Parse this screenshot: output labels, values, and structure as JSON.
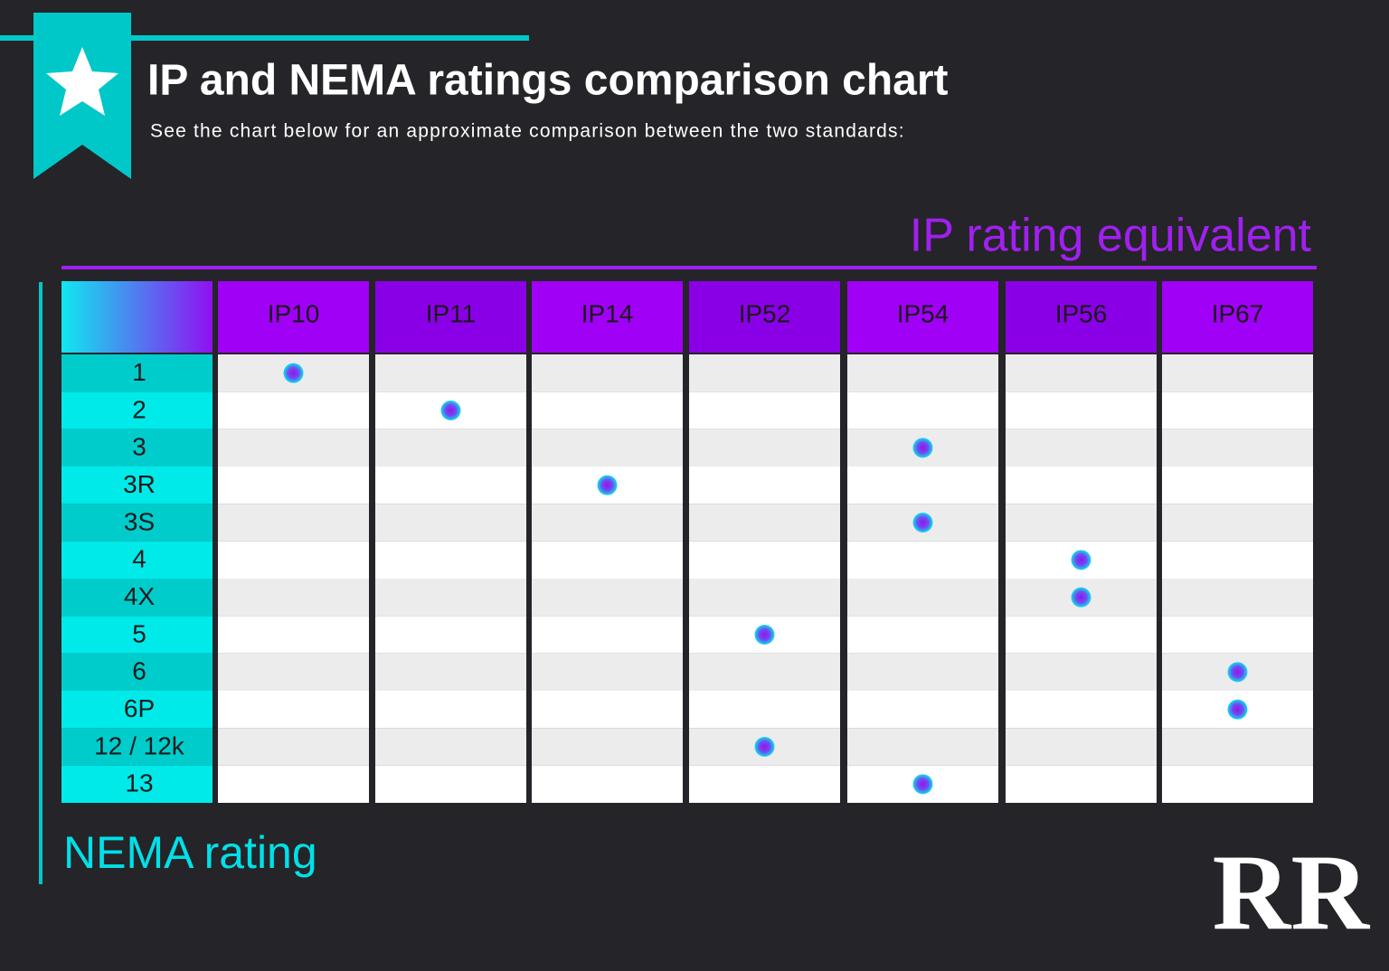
{
  "header": {
    "title": "IP and NEMA ratings comparison chart",
    "subtitle": "See the chart below for an approximate comparison between the two standards:"
  },
  "table": {
    "column_title": "IP rating equivalent",
    "row_title": "NEMA rating",
    "columns": [
      "IP10",
      "IP11",
      "IP14",
      "IP52",
      "IP54",
      "IP56",
      "IP67"
    ],
    "rows": [
      {
        "nema": "1",
        "ip": "IP10"
      },
      {
        "nema": "2",
        "ip": "IP11"
      },
      {
        "nema": "3",
        "ip": "IP54"
      },
      {
        "nema": "3R",
        "ip": "IP14"
      },
      {
        "nema": "3S",
        "ip": "IP54"
      },
      {
        "nema": "4",
        "ip": "IP56"
      },
      {
        "nema": "4X",
        "ip": "IP56"
      },
      {
        "nema": "5",
        "ip": "IP52"
      },
      {
        "nema": "6",
        "ip": "IP67"
      },
      {
        "nema": "6P",
        "ip": "IP67"
      },
      {
        "nema": "12 / 12k",
        "ip": "IP52"
      },
      {
        "nema": "13",
        "ip": "IP54"
      }
    ]
  },
  "brand": {
    "logo": "RR"
  }
}
